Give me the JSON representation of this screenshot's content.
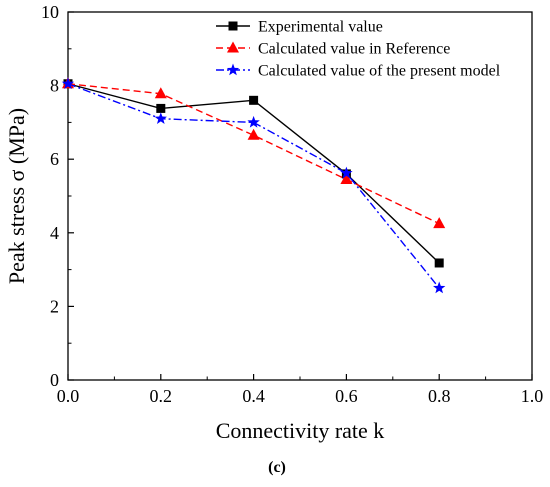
{
  "chart_data": {
    "type": "line",
    "xlabel": "Connectivity rate k",
    "ylabel": "Peak stress σ (MPa)",
    "caption": "(c)",
    "xlim": [
      0.0,
      1.0
    ],
    "ylim": [
      0,
      10
    ],
    "x_ticks": [
      "0.0",
      "0.2",
      "0.4",
      "0.6",
      "0.8",
      "1.0"
    ],
    "y_ticks": [
      "0",
      "2",
      "4",
      "6",
      "8",
      "10"
    ],
    "x_tick_values": [
      0.0,
      0.2,
      0.4,
      0.6,
      0.8,
      1.0
    ],
    "y_tick_values": [
      0,
      2,
      4,
      6,
      8,
      10
    ],
    "grid": false,
    "legend_position": "top-right",
    "series": [
      {
        "name": "Experimental value",
        "x": [
          0.0,
          0.2,
          0.4,
          0.6,
          0.8
        ],
        "y": [
          8.05,
          7.38,
          7.6,
          5.6,
          3.18
        ],
        "color": "#000000",
        "marker": "square",
        "line_style": "solid"
      },
      {
        "name": "Calculated value in Reference",
        "x": [
          0.0,
          0.2,
          0.4,
          0.6,
          0.8
        ],
        "y": [
          8.05,
          7.78,
          6.65,
          5.45,
          4.25
        ],
        "color": "#ff0000",
        "marker": "triangle",
        "line_style": "dashed"
      },
      {
        "name": "Calculated value of the present model",
        "x": [
          0.0,
          0.2,
          0.4,
          0.6,
          0.8
        ],
        "y": [
          8.05,
          7.1,
          7.0,
          5.62,
          2.5
        ],
        "color": "#0000ff",
        "marker": "star",
        "line_style": "dashdot"
      }
    ]
  }
}
